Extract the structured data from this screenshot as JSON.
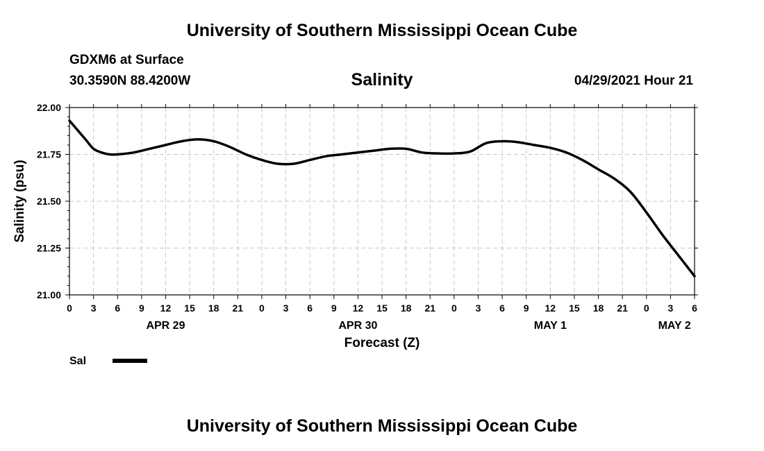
{
  "header": {
    "title": "University of Southern Mississippi Ocean Cube",
    "station": "GDXM6 at Surface",
    "coords": "30.3590N  88.4200W",
    "timestamp": "04/29/2021 Hour 21"
  },
  "footer": {
    "title": "University of Southern Mississippi Ocean Cube"
  },
  "chart_data": {
    "type": "line",
    "title": "Salinity",
    "xlabel": "Forecast (Z)",
    "ylabel": "Salinity (psu)",
    "ylim": [
      21.0,
      22.0
    ],
    "yticks": [
      "21.00",
      "21.25",
      "21.50",
      "21.75",
      "22.00"
    ],
    "xlim_hours_from_apr29_00z": [
      0,
      78
    ],
    "xtick_labels": [
      "0",
      "3",
      "6",
      "9",
      "12",
      "15",
      "18",
      "21",
      "0",
      "3",
      "6",
      "9",
      "12",
      "15",
      "18",
      "21",
      "0",
      "3",
      "6",
      "9",
      "12",
      "15",
      "18",
      "21",
      "0",
      "3",
      "6"
    ],
    "date_labels": [
      {
        "label": "APR 29",
        "hour": 12
      },
      {
        "label": "APR 30",
        "hour": 36
      },
      {
        "label": "MAY 1",
        "hour": 60
      },
      {
        "label": "MAY 2",
        "hour": 75.5
      }
    ],
    "grid": true,
    "legend": {
      "label": "Sal",
      "placement": "bottom-left"
    },
    "series": [
      {
        "name": "Sal",
        "color": "#000000",
        "x": [
          0,
          1,
          2,
          3,
          4,
          5,
          6,
          8,
          10,
          12,
          14,
          16,
          18,
          20,
          22,
          24,
          26,
          28,
          30,
          32,
          34,
          36,
          38,
          40,
          42,
          44,
          46,
          48,
          50,
          52,
          54,
          56,
          58,
          60,
          62,
          64,
          66,
          68,
          70,
          72,
          74,
          76,
          78
        ],
        "y": [
          21.93,
          21.88,
          21.83,
          21.78,
          21.76,
          21.75,
          21.75,
          21.76,
          21.78,
          21.8,
          21.82,
          21.83,
          21.82,
          21.79,
          21.75,
          21.72,
          21.7,
          21.7,
          21.72,
          21.74,
          21.75,
          21.76,
          21.77,
          21.78,
          21.78,
          21.76,
          21.755,
          21.755,
          21.765,
          21.81,
          21.82,
          21.815,
          21.8,
          21.785,
          21.76,
          21.72,
          21.67,
          21.62,
          21.55,
          21.44,
          21.32,
          21.21,
          21.1
        ]
      }
    ]
  }
}
